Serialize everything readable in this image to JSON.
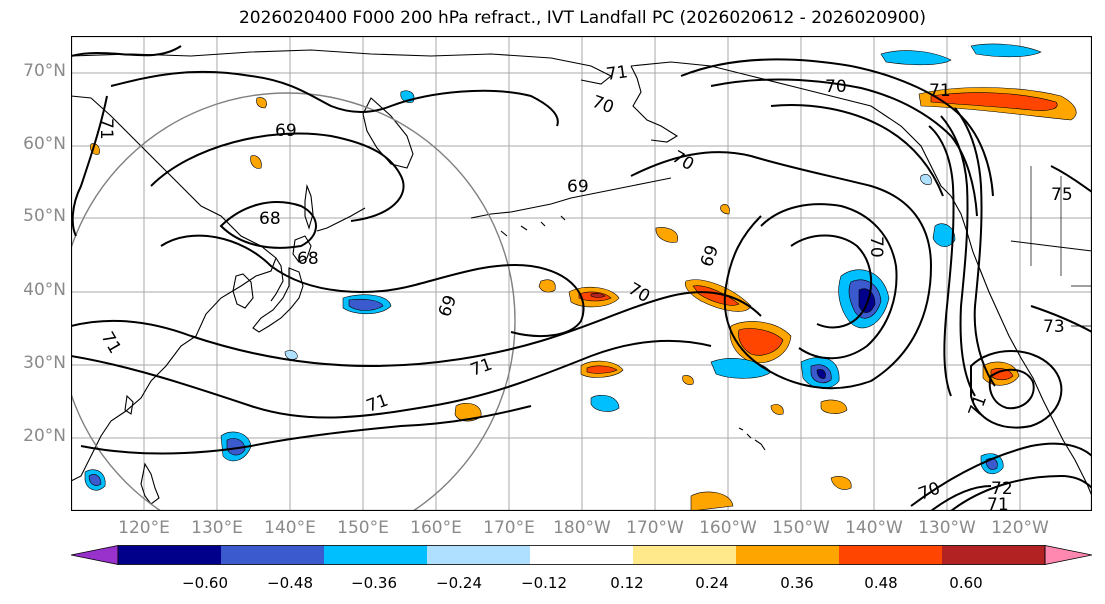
{
  "title": "2026020400 F000 200 hPa refract., IVT Landfall PC (2026020612 - 2026020900)",
  "map": {
    "projection": "Equidistant cylindrical, Pacific-centered",
    "lat_labels": [
      "70°N",
      "60°N",
      "50°N",
      "40°N",
      "30°N",
      "20°N"
    ],
    "lon_labels": [
      "120°E",
      "130°E",
      "140°E",
      "150°E",
      "160°E",
      "170°E",
      "180°W",
      "170°W",
      "160°W",
      "150°W",
      "140°W",
      "130°W",
      "120°W"
    ],
    "contour_labels": [
      "71",
      "70",
      "69",
      "68",
      "70",
      "71",
      "69",
      "70",
      "71",
      "69",
      "68",
      "69",
      "70",
      "70",
      "71",
      "72",
      "73",
      "75",
      "71",
      "71",
      "71",
      "70",
      "71"
    ],
    "lat_range": [
      10,
      75
    ],
    "lon_range": [
      111,
      251
    ]
  },
  "colorbar": {
    "ticks": [
      "−0.60",
      "−0.48",
      "−0.36",
      "−0.24",
      "−0.12",
      "0.12",
      "0.24",
      "0.36",
      "0.48",
      "0.60"
    ],
    "colors": [
      "#9932cc",
      "#00008b",
      "#3a5acd",
      "#00bfff",
      "#b0e0ff",
      "#ffffff",
      "#ffe98a",
      "#ffa500",
      "#ff4500",
      "#b22222",
      "#ff88b0"
    ]
  }
}
